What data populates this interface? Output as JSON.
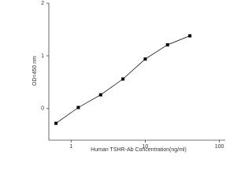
{
  "chart_data": {
    "type": "line",
    "xlabel": "Human TSHR-Ab Concentration(ng/ml)",
    "ylabel": "OD=450 nm",
    "x": [
      0.625,
      1.25,
      2.5,
      5,
      10,
      20,
      40
    ],
    "series": [
      {
        "color": "#000000",
        "values": [
          -0.28,
          0.02,
          0.26,
          0.56,
          0.94,
          1.21,
          1.38
        ]
      }
    ],
    "xlim": [
      0.5,
      120
    ],
    "xticks": [
      1,
      10,
      100
    ],
    "xscale": "log",
    "ylim": [
      -0.6,
      2
    ],
    "yticks": [
      0,
      1,
      2
    ]
  }
}
